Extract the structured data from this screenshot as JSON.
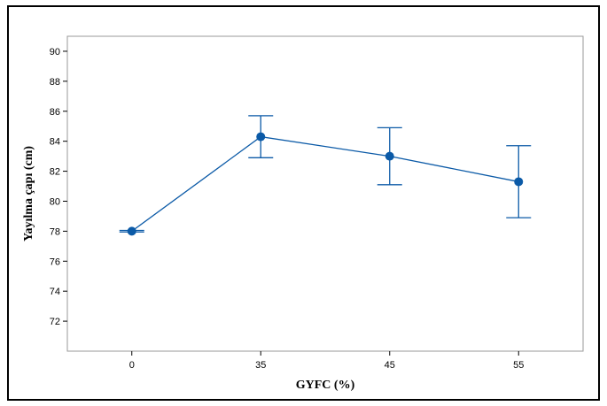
{
  "chart_data": {
    "type": "line",
    "title": "",
    "xlabel": "GYFC (%)",
    "ylabel": "Yayılma çapı (cm)",
    "categories": [
      "0",
      "35",
      "45",
      "55"
    ],
    "series": [
      {
        "values": [
          78.0,
          84.3,
          83.0,
          81.3
        ],
        "error_low": [
          77.95,
          82.9,
          81.1,
          78.9
        ],
        "error_high": [
          78.05,
          85.7,
          84.9,
          83.7
        ]
      }
    ],
    "yticks": [
      72,
      74,
      76,
      78,
      80,
      82,
      84,
      86,
      88,
      90
    ],
    "ylim": [
      70.0,
      91.0
    ],
    "grid": false,
    "legend": "none",
    "colors": {
      "series": "#0b5aa7",
      "frame": "#9a9a9a"
    }
  }
}
